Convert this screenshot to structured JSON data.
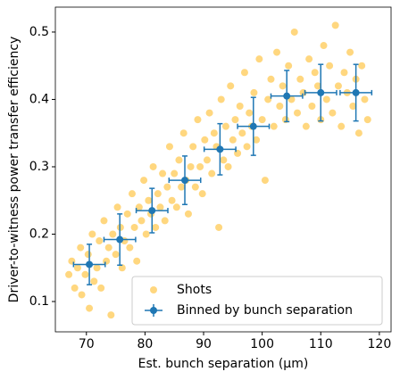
{
  "chart_data": {
    "type": "scatter",
    "xlabel": "Est. bunch separation (μm)",
    "ylabel": "Driver-to-witness power transfer efficiency",
    "xlim": [
      64.7,
      122
    ],
    "ylim": [
      0.055,
      0.537
    ],
    "xticks": [
      70,
      80,
      90,
      100,
      110,
      120
    ],
    "yticks": [
      0.1,
      0.2,
      0.3,
      0.4,
      0.5
    ],
    "legend": "lower right",
    "series": [
      {
        "name": "Shots",
        "color": "#ffb000",
        "x": [
          67,
          67.5,
          68,
          68.5,
          69,
          69.2,
          69.8,
          70.3,
          70.5,
          71,
          71.3,
          71.8,
          72.2,
          72.5,
          73,
          73.4,
          73.8,
          74.2,
          74.5,
          75,
          75.3,
          75.8,
          76.1,
          76.5,
          77,
          77.4,
          77.8,
          78.2,
          78.6,
          79,
          79.4,
          79.8,
          80.2,
          80.6,
          81,
          81.4,
          81.8,
          82.2,
          82.6,
          83,
          83.4,
          83.8,
          84.2,
          84.6,
          85,
          85.4,
          85.8,
          86.2,
          86.6,
          87,
          87.4,
          87.8,
          88.2,
          88.6,
          89,
          89.4,
          89.8,
          90.2,
          90.6,
          91,
          91.4,
          91.8,
          92.2,
          92.6,
          93,
          93.4,
          93.8,
          94.2,
          94.6,
          95,
          95.4,
          95.8,
          96.2,
          96.6,
          97,
          97.4,
          97.8,
          98.2,
          98.6,
          99,
          99.5,
          100,
          100.5,
          101,
          101.5,
          102,
          102.5,
          103,
          103.5,
          104,
          104.5,
          105,
          105.5,
          106,
          106.5,
          107,
          107.5,
          108,
          108.5,
          109,
          109.5,
          110,
          110.5,
          111,
          111.5,
          112,
          112.5,
          113,
          113.5,
          114,
          114.5,
          115,
          115.5,
          116,
          116.5,
          117,
          117.5,
          118
        ],
        "values": [
          0.14,
          0.16,
          0.12,
          0.15,
          0.18,
          0.11,
          0.14,
          0.17,
          0.09,
          0.2,
          0.13,
          0.15,
          0.19,
          0.12,
          0.22,
          0.16,
          0.18,
          0.08,
          0.2,
          0.17,
          0.24,
          0.21,
          0.15,
          0.19,
          0.23,
          0.18,
          0.26,
          0.21,
          0.16,
          0.24,
          0.22,
          0.28,
          0.2,
          0.25,
          0.23,
          0.3,
          0.21,
          0.26,
          0.24,
          0.29,
          0.22,
          0.27,
          0.33,
          0.25,
          0.29,
          0.24,
          0.31,
          0.27,
          0.35,
          0.28,
          0.23,
          0.3,
          0.33,
          0.27,
          0.37,
          0.3,
          0.26,
          0.34,
          0.31,
          0.38,
          0.29,
          0.35,
          0.33,
          0.21,
          0.4,
          0.31,
          0.36,
          0.3,
          0.42,
          0.34,
          0.37,
          0.32,
          0.39,
          0.35,
          0.44,
          0.33,
          0.38,
          0.36,
          0.41,
          0.34,
          0.46,
          0.37,
          0.28,
          0.4,
          0.43,
          0.36,
          0.47,
          0.39,
          0.42,
          0.37,
          0.45,
          0.4,
          0.5,
          0.38,
          0.43,
          0.41,
          0.36,
          0.46,
          0.39,
          0.44,
          0.42,
          0.37,
          0.48,
          0.4,
          0.45,
          0.38,
          0.51,
          0.42,
          0.36,
          0.44,
          0.41,
          0.47,
          0.39,
          0.43,
          0.35,
          0.45,
          0.4,
          0.37
        ]
      },
      {
        "name": "Binned by bunch separation",
        "color": "#1f77b4",
        "x": [
          70.5,
          75.7,
          81.2,
          86.8,
          92.8,
          98.5,
          104.2,
          110,
          116
        ],
        "xerr": [
          2.7,
          2.7,
          2.7,
          2.7,
          2.7,
          2.7,
          2.7,
          2.7,
          2.7
        ],
        "values": [
          0.155,
          0.192,
          0.235,
          0.28,
          0.326,
          0.36,
          0.405,
          0.41,
          0.41
        ],
        "yerr": [
          0.03,
          0.038,
          0.033,
          0.036,
          0.038,
          0.043,
          0.038,
          0.042,
          0.042
        ]
      }
    ]
  }
}
